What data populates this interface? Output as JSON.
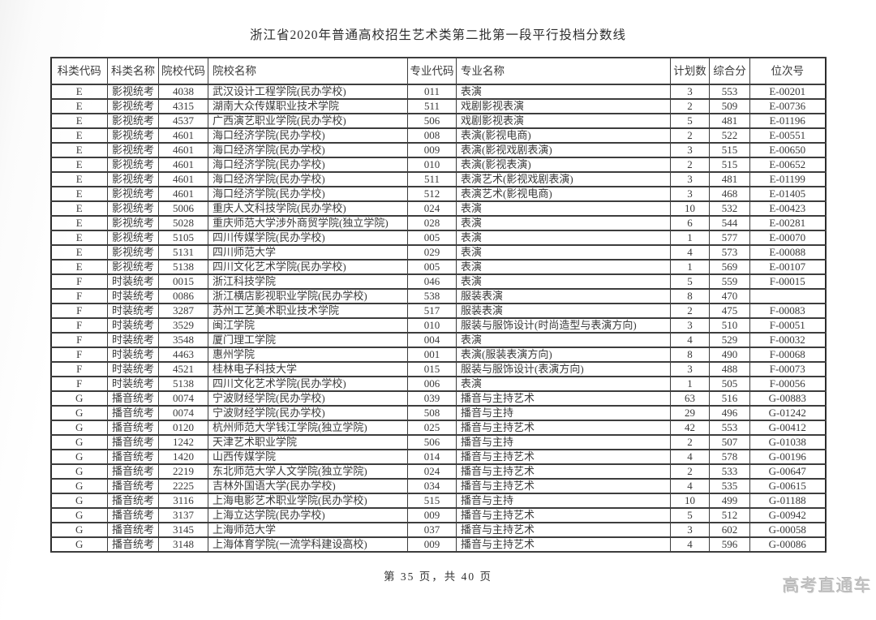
{
  "page": {
    "title": "浙江省2020年普通高校招生艺术类第二批第一段平行投档分数线",
    "footer": "第 35 页，共 40 页",
    "watermark": "高考直通车"
  },
  "table": {
    "headers": [
      "科类代码",
      "科类名称",
      "院校代码",
      "院校名称",
      "专业代码",
      "专业名称",
      "计划数",
      "综合分",
      "位次号"
    ],
    "rows": [
      [
        "E",
        "影视统考",
        "4038",
        "武汉设计工程学院(民办学校)",
        "011",
        "表演",
        "3",
        "553",
        "E-00201"
      ],
      [
        "E",
        "影视统考",
        "4315",
        "湖南大众传媒职业技术学院",
        "511",
        "戏剧影视表演",
        "2",
        "509",
        "E-00736"
      ],
      [
        "E",
        "影视统考",
        "4537",
        "广西演艺职业学院(民办学校)",
        "506",
        "戏剧影视表演",
        "5",
        "481",
        "E-01196"
      ],
      [
        "E",
        "影视统考",
        "4601",
        "海口经济学院(民办学校)",
        "008",
        "表演(影视电商)",
        "2",
        "522",
        "E-00551"
      ],
      [
        "E",
        "影视统考",
        "4601",
        "海口经济学院(民办学校)",
        "009",
        "表演(影视戏剧表演)",
        "3",
        "515",
        "E-00650"
      ],
      [
        "E",
        "影视统考",
        "4601",
        "海口经济学院(民办学校)",
        "010",
        "表演(影视表演)",
        "2",
        "515",
        "E-00652"
      ],
      [
        "E",
        "影视统考",
        "4601",
        "海口经济学院(民办学校)",
        "511",
        "表演艺术(影视戏剧表演)",
        "3",
        "481",
        "E-01199"
      ],
      [
        "E",
        "影视统考",
        "4601",
        "海口经济学院(民办学校)",
        "512",
        "表演艺术(影视电商)",
        "3",
        "468",
        "E-01405"
      ],
      [
        "E",
        "影视统考",
        "5006",
        "重庆人文科技学院(民办学校)",
        "024",
        "表演",
        "10",
        "532",
        "E-00423"
      ],
      [
        "E",
        "影视统考",
        "5028",
        "重庆师范大学涉外商贸学院(独立学院)",
        "028",
        "表演",
        "6",
        "544",
        "E-00281"
      ],
      [
        "E",
        "影视统考",
        "5105",
        "四川传媒学院(民办学校)",
        "005",
        "表演",
        "1",
        "577",
        "E-00070"
      ],
      [
        "E",
        "影视统考",
        "5131",
        "四川师范大学",
        "029",
        "表演",
        "4",
        "573",
        "E-00088"
      ],
      [
        "E",
        "影视统考",
        "5138",
        "四川文化艺术学院(民办学校)",
        "005",
        "表演",
        "1",
        "569",
        "E-00107"
      ],
      [
        "F",
        "时装统考",
        "0015",
        "浙江科技学院",
        "046",
        "表演",
        "5",
        "559",
        "F-00015"
      ],
      [
        "F",
        "时装统考",
        "0086",
        "浙江横店影视职业学院(民办学校)",
        "538",
        "服装表演",
        "8",
        "470",
        ""
      ],
      [
        "F",
        "时装统考",
        "3287",
        "苏州工艺美术职业技术学院",
        "517",
        "服装表演",
        "2",
        "475",
        "F-00083"
      ],
      [
        "F",
        "时装统考",
        "3529",
        "闽江学院",
        "010",
        "服装与服饰设计(时尚造型与表演方向)",
        "3",
        "510",
        "F-00051"
      ],
      [
        "F",
        "时装统考",
        "3548",
        "厦门理工学院",
        "004",
        "表演",
        "4",
        "529",
        "F-00032"
      ],
      [
        "F",
        "时装统考",
        "4463",
        "惠州学院",
        "001",
        "表演(服装表演方向)",
        "8",
        "490",
        "F-00068"
      ],
      [
        "F",
        "时装统考",
        "4521",
        "桂林电子科技大学",
        "015",
        "服装与服饰设计(表演方向)",
        "3",
        "488",
        "F-00073"
      ],
      [
        "F",
        "时装统考",
        "5138",
        "四川文化艺术学院(民办学校)",
        "006",
        "表演",
        "1",
        "505",
        "F-00056"
      ],
      [
        "G",
        "播音统考",
        "0074",
        "宁波财经学院(民办学校)",
        "039",
        "播音与主持艺术",
        "63",
        "516",
        "G-00883"
      ],
      [
        "G",
        "播音统考",
        "0074",
        "宁波财经学院(民办学校)",
        "508",
        "播音与主持",
        "29",
        "496",
        "G-01242"
      ],
      [
        "G",
        "播音统考",
        "0120",
        "杭州师范大学钱江学院(独立学院)",
        "025",
        "播音与主持艺术",
        "42",
        "553",
        "G-00412"
      ],
      [
        "G",
        "播音统考",
        "1242",
        "天津艺术职业学院",
        "506",
        "播音与主持",
        "2",
        "507",
        "G-01038"
      ],
      [
        "G",
        "播音统考",
        "1420",
        "山西传媒学院",
        "014",
        "播音与主持艺术",
        "4",
        "578",
        "G-00196"
      ],
      [
        "G",
        "播音统考",
        "2219",
        "东北师范大学人文学院(独立学院)",
        "024",
        "播音与主持艺术",
        "2",
        "533",
        "G-00647"
      ],
      [
        "G",
        "播音统考",
        "2225",
        "吉林外国语大学(民办学校)",
        "034",
        "播音与主持艺术",
        "4",
        "535",
        "G-00615"
      ],
      [
        "G",
        "播音统考",
        "3116",
        "上海电影艺术职业学院(民办学校)",
        "515",
        "播音与主持",
        "10",
        "499",
        "G-01188"
      ],
      [
        "G",
        "播音统考",
        "3137",
        "上海立达学院(民办学校)",
        "009",
        "播音与主持艺术",
        "5",
        "512",
        "G-00942"
      ],
      [
        "G",
        "播音统考",
        "3145",
        "上海师范大学",
        "037",
        "播音与主持艺术",
        "3",
        "602",
        "G-00058"
      ],
      [
        "G",
        "播音统考",
        "3148",
        "上海体育学院(一流学科建设高校)",
        "009",
        "播音与主持艺术",
        "4",
        "596",
        "G-00086"
      ]
    ]
  },
  "colors": {
    "text": "#3a3a3a",
    "border": "#3d3d3d",
    "watermark": "#c6c6c6"
  }
}
